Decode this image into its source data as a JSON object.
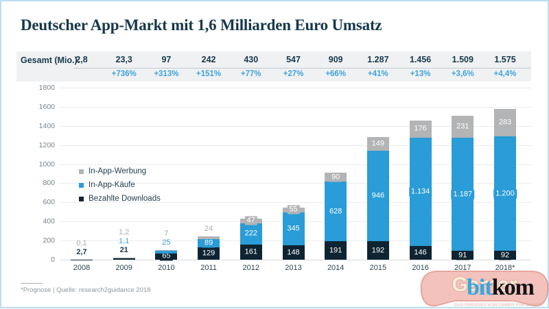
{
  "title": "Deutscher App-Markt mit 1,6 Milliarden Euro Umsatz",
  "totals": {
    "label": "Gesamt (Mio.):",
    "values": [
      "2,8",
      "23,3",
      "97",
      "242",
      "430",
      "547",
      "909",
      "1.287",
      "1.456",
      "1.509",
      "1.575"
    ],
    "growth": [
      "",
      "+736%",
      "+313%",
      "+151%",
      "+77%",
      "+27%",
      "+66%",
      "+41%",
      "+13%",
      "+3,6%",
      "+4,4%"
    ]
  },
  "chart_data": {
    "type": "bar",
    "stacked": true,
    "title": "Deutscher App-Markt mit 1,6 Milliarden Euro Umsatz",
    "categories": [
      "2008",
      "2009",
      "2010",
      "2011",
      "2012",
      "2013",
      "2014",
      "2015",
      "2016",
      "2017",
      "2018*"
    ],
    "series": [
      {
        "name": "Bezahlte Downloads",
        "color": "#0f2432",
        "values": [
          2.7,
          21,
          65,
          129,
          161,
          148,
          191,
          192,
          146,
          91,
          92
        ],
        "labels": [
          "2,7",
          "21",
          "65",
          "129",
          "161",
          "148",
          "191",
          "192",
          "146",
          "91",
          "92"
        ]
      },
      {
        "name": "In-App-Käufe",
        "color": "#2a9cd7",
        "values": [
          0,
          1.1,
          25,
          89,
          222,
          345,
          628,
          946,
          1134,
          1187,
          1200
        ],
        "labels": [
          "",
          "1,1",
          "25",
          "89",
          "222",
          "345",
          "628",
          "946",
          "1.134",
          "1.187",
          "1.200"
        ]
      },
      {
        "name": "In-App-Werbung",
        "color": "#b3b4b5",
        "values": [
          0.1,
          1.2,
          7,
          24,
          47,
          55,
          90,
          149,
          176,
          231,
          283
        ],
        "labels": [
          "0,1",
          "1,2",
          "7",
          "24",
          "47",
          "55",
          "90",
          "149",
          "176",
          "231",
          "283"
        ]
      }
    ],
    "legend": [
      {
        "label": "In-App-Werbung",
        "color": "#b3b4b5"
      },
      {
        "label": "In-App-Käufe",
        "color": "#2a9cd7"
      },
      {
        "label": "Bezahlte Downloads",
        "color": "#0f2432"
      }
    ],
    "above_label_colors": {
      "Bezahlte Downloads": "#16384a",
      "In-App-Käufe": "#3aa0d9",
      "In-App-Werbung": "#a9abad"
    },
    "ylim": [
      0,
      1800
    ],
    "ytick_step": 200,
    "grid": true,
    "legend_position": "middle-left",
    "xlabel": "",
    "ylabel": ""
  },
  "footnote": "*Prognose | Quelle: research2guidance 2018",
  "logo": {
    "bit": "bit",
    "kom": "kom"
  },
  "watermark": {
    "text": "Gamer",
    "tagline": "DAS PARADIES VON GAMER FÜR GAMER"
  },
  "colors": {
    "accent_blue": "#41a3da",
    "title_dark": "#16384a",
    "band_bg": "#eff1f3",
    "bar_blue": "#2a9cd7",
    "bar_dark": "#0f2432",
    "bar_gray": "#b3b4b5",
    "logo_blue": "#2fa9e0",
    "watermark_red": "#d25c4e",
    "border_blue": "#b9dff0"
  }
}
